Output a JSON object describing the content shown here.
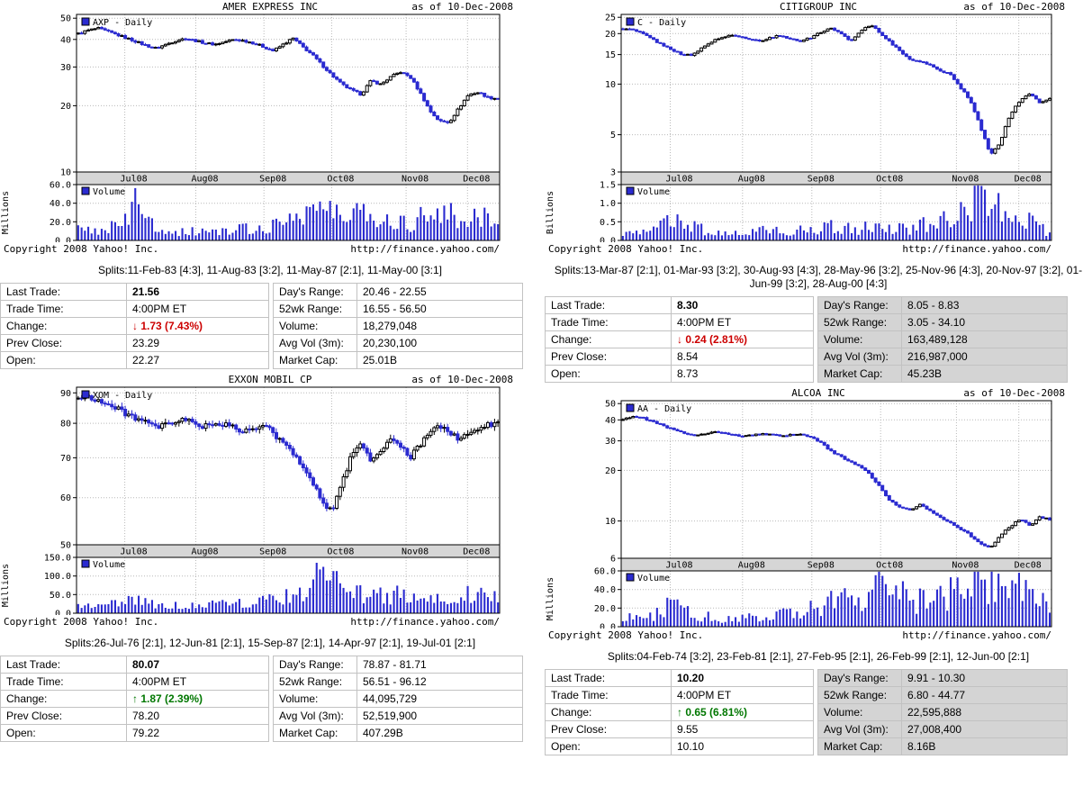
{
  "colors": {
    "candle_blue": "#2b2bd0",
    "band_gray": "#d6d6d6",
    "down_red": "#cc0000",
    "up_green": "#007700",
    "table_highlight": "#d4d4d4"
  },
  "glyphs": {
    "up": "↑",
    "down": "↓"
  },
  "chart_data": [
    {
      "type": "candlestick+volume",
      "title": "AMER EXPRESS INC",
      "as_of": "as of 10-Dec-2008",
      "legend": "AXP - Daily",
      "volume_legend": "Volume",
      "volume_unit": "Millions",
      "copyright": "Copyright 2008 Yahoo! Inc.",
      "url": "http://finance.yahoo.com/",
      "months": [
        "Jul08",
        "Aug08",
        "Sep08",
        "Oct08",
        "Nov08",
        "Dec08"
      ],
      "month_fracs": [
        0.114,
        0.282,
        0.443,
        0.603,
        0.779,
        0.924
      ],
      "price_ticks": [
        50,
        40,
        30,
        20,
        10
      ],
      "price_range": [
        10,
        52
      ],
      "volume_ticks": [
        60,
        40,
        20,
        0
      ],
      "volume_range": [
        0,
        60
      ],
      "x_range": "Jun-2008 to 10-Dec-2008",
      "closes": [
        42.5,
        44,
        45,
        43.5,
        42,
        40.5,
        39,
        37.5,
        36.5,
        38,
        39.5,
        40.5,
        39.5,
        38.5,
        38,
        39,
        40,
        39.5,
        38.5,
        37,
        35.5,
        38,
        40.5,
        37,
        34,
        30.5,
        27.5,
        25,
        23.5,
        22.5,
        26,
        25,
        27,
        28.5,
        27,
        23,
        19,
        17,
        16.8,
        19.5,
        22.5,
        23,
        21.8,
        21.56
      ],
      "volumes": [
        11,
        10,
        12,
        14,
        16,
        20,
        46,
        22,
        15,
        12,
        10,
        9,
        10,
        11,
        10,
        9,
        11,
        13,
        12,
        14,
        17,
        21,
        26,
        31,
        38,
        34,
        30,
        27,
        24,
        41,
        30,
        24,
        20,
        23,
        18,
        26,
        32,
        34,
        28,
        22,
        26,
        30,
        23,
        18
      ]
    },
    {
      "type": "candlestick+volume",
      "title": "CITIGROUP INC",
      "as_of": "as of 10-Dec-2008",
      "legend": "C - Daily",
      "volume_legend": "Volume",
      "volume_unit": "Billions",
      "copyright": "Copyright 2008 Yahoo! Inc.",
      "url": "http://finance.yahoo.com/",
      "months": [
        "Jul08",
        "Aug08",
        "Sep08",
        "Oct08",
        "Nov08",
        "Dec08"
      ],
      "month_fracs": [
        0.114,
        0.282,
        0.443,
        0.603,
        0.779,
        0.924
      ],
      "price_ticks": [
        25,
        20,
        15,
        10,
        5,
        3
      ],
      "price_range": [
        3,
        26
      ],
      "volume_ticks": [
        1.5,
        1.0,
        0.5,
        0.0
      ],
      "volume_range": [
        0,
        1.5
      ],
      "x_range": "Jun-2008 to 10-Dec-2008",
      "closes": [
        21.5,
        21,
        20,
        18.5,
        17,
        16,
        15,
        14.8,
        16.5,
        18,
        19,
        19.5,
        19,
        18.5,
        18,
        19,
        19.5,
        18.5,
        18,
        19,
        20.5,
        21.5,
        20,
        18,
        21,
        22.5,
        20,
        17.5,
        15.5,
        14,
        13.5,
        13,
        12,
        11.5,
        9.5,
        8,
        5.5,
        3.8,
        4.5,
        6.5,
        8,
        8.8,
        7.7,
        8.3
      ],
      "volumes": [
        0.2,
        0.18,
        0.22,
        0.3,
        0.42,
        0.5,
        0.45,
        0.38,
        0.3,
        0.25,
        0.22,
        0.18,
        0.2,
        0.22,
        0.26,
        0.3,
        0.24,
        0.2,
        0.28,
        0.35,
        0.3,
        0.38,
        0.36,
        0.3,
        0.32,
        0.4,
        0.36,
        0.32,
        0.36,
        0.3,
        0.4,
        0.5,
        0.55,
        0.65,
        0.9,
        1.1,
        1.45,
        1.2,
        0.95,
        0.75,
        0.55,
        0.5,
        0.4,
        0.18
      ]
    },
    {
      "type": "candlestick+volume",
      "title": "EXXON MOBIL CP",
      "as_of": "as of 10-Dec-2008",
      "legend": "XOM - Daily",
      "volume_legend": "Volume",
      "volume_unit": "Millions",
      "copyright": "Copyright 2008 Yahoo! Inc.",
      "url": "http://finance.yahoo.com/",
      "months": [
        "Jul08",
        "Aug08",
        "Sep08",
        "Oct08",
        "Nov08",
        "Dec08"
      ],
      "month_fracs": [
        0.114,
        0.282,
        0.443,
        0.603,
        0.779,
        0.924
      ],
      "price_ticks": [
        90,
        80,
        70,
        60,
        50
      ],
      "price_range": [
        50,
        92
      ],
      "volume_ticks": [
        150,
        100,
        50,
        0
      ],
      "volume_range": [
        0,
        150
      ],
      "x_range": "Jun-2008 to 10-Dec-2008",
      "closes": [
        88,
        89,
        87.5,
        86,
        84.5,
        83,
        81.5,
        80,
        78.5,
        79.5,
        80.5,
        81,
        80,
        79,
        80,
        79.5,
        78.5,
        77.5,
        78,
        79.5,
        77,
        74,
        71,
        68,
        64,
        59,
        57,
        63,
        71,
        74.5,
        69,
        72,
        75,
        73,
        70,
        73.5,
        77,
        79.5,
        77.5,
        75,
        76.5,
        78.5,
        79.5,
        80.07
      ],
      "volumes": [
        26,
        22,
        24,
        27,
        32,
        30,
        36,
        32,
        26,
        23,
        21,
        19,
        21,
        23,
        26,
        31,
        29,
        26,
        31,
        36,
        42,
        46,
        52,
        62,
        85,
        105,
        92,
        72,
        62,
        57,
        52,
        47,
        52,
        57,
        60,
        52,
        47,
        42,
        47,
        52,
        57,
        60,
        50,
        44
      ]
    },
    {
      "type": "candlestick+volume",
      "title": "ALCOA INC",
      "as_of": "as of 10-Dec-2008",
      "legend": "AA - Daily",
      "volume_legend": "Volume",
      "volume_unit": "Millions",
      "copyright": "Copyright 2008 Yahoo! Inc.",
      "url": "http://finance.yahoo.com/",
      "months": [
        "Jul08",
        "Aug08",
        "Sep08",
        "Oct08",
        "Nov08",
        "Dec08"
      ],
      "month_fracs": [
        0.114,
        0.282,
        0.443,
        0.603,
        0.779,
        0.924
      ],
      "price_ticks": [
        50,
        40,
        30,
        20,
        10,
        6
      ],
      "price_range": [
        6,
        52
      ],
      "volume_ticks": [
        60,
        40,
        20,
        0
      ],
      "volume_range": [
        0,
        60
      ],
      "x_range": "Jun-2008 to 10-Dec-2008",
      "closes": [
        40.5,
        42,
        41,
        39,
        37,
        35,
        33.5,
        32.5,
        33,
        34,
        33.5,
        32.5,
        32,
        32.5,
        33,
        32.5,
        32,
        32.5,
        33,
        31.5,
        29,
        26,
        24,
        22.5,
        21,
        18.5,
        15.5,
        13,
        12,
        11.5,
        12.5,
        11.5,
        10.5,
        9.8,
        9,
        8.2,
        7.3,
        6.9,
        8.2,
        9.3,
        10.2,
        9.4,
        10.6,
        10.2
      ],
      "volumes": [
        9,
        10,
        11,
        13,
        16,
        31,
        21,
        15,
        12,
        10,
        9,
        10,
        12,
        11,
        10,
        12,
        14,
        16,
        18,
        21,
        23,
        26,
        29,
        31,
        36,
        41,
        50,
        44,
        36,
        30,
        28,
        26,
        31,
        36,
        40,
        45,
        56,
        48,
        40,
        52,
        44,
        36,
        30,
        24
      ]
    }
  ],
  "panels": [
    {
      "splits": "Splits:11-Feb-83 [4:3], 11-Aug-83 [3:2], 11-May-87 [2:1], 11-May-00 [3:1]",
      "quote": {
        "highlight_right": false,
        "left": [
          {
            "label": "Last Trade:",
            "value": "21.56",
            "big": true
          },
          {
            "label": "Trade Time:",
            "value": "4:00PM ET"
          },
          {
            "label": "Change:",
            "value": "1.73 (7.43%)",
            "arrow": "down"
          },
          {
            "label": "Prev Close:",
            "value": "23.29"
          },
          {
            "label": "Open:",
            "value": "22.27"
          }
        ],
        "right": [
          {
            "label": "Day's Range:",
            "value": "20.46 - 22.55"
          },
          {
            "label": "52wk Range:",
            "value": "16.55 - 56.50"
          },
          {
            "label": "Volume:",
            "value": "18,279,048"
          },
          {
            "label": "Avg Vol (3m):",
            "value": "20,230,100"
          },
          {
            "label": "Market Cap:",
            "value": "25.01B"
          }
        ]
      }
    },
    {
      "splits": "Splits:13-Mar-87 [2:1], 01-Mar-93 [3:2], 30-Aug-93 [4:3], 28-May-96 [3:2], 25-Nov-96 [4:3], 20-Nov-97 [3:2], 01-Jun-99 [3:2], 28-Aug-00 [4:3]",
      "quote": {
        "highlight_right": true,
        "left": [
          {
            "label": "Last Trade:",
            "value": "8.30",
            "big": true
          },
          {
            "label": "Trade Time:",
            "value": "4:00PM ET"
          },
          {
            "label": "Change:",
            "value": "0.24 (2.81%)",
            "arrow": "down"
          },
          {
            "label": "Prev Close:",
            "value": "8.54"
          },
          {
            "label": "Open:",
            "value": "8.73"
          }
        ],
        "right": [
          {
            "label": "Day's Range:",
            "value": "8.05 - 8.83"
          },
          {
            "label": "52wk Range:",
            "value": "3.05 - 34.10"
          },
          {
            "label": "Volume:",
            "value": "163,489,128"
          },
          {
            "label": "Avg Vol (3m):",
            "value": "216,987,000"
          },
          {
            "label": "Market Cap:",
            "value": "45.23B"
          }
        ]
      }
    },
    {
      "splits": "Splits:26-Jul-76 [2:1], 12-Jun-81 [2:1], 15-Sep-87 [2:1], 14-Apr-97 [2:1], 19-Jul-01 [2:1]",
      "quote": {
        "highlight_right": false,
        "left": [
          {
            "label": "Last Trade:",
            "value": "80.07",
            "big": true
          },
          {
            "label": "Trade Time:",
            "value": "4:00PM ET"
          },
          {
            "label": "Change:",
            "value": "1.87 (2.39%)",
            "arrow": "up"
          },
          {
            "label": "Prev Close:",
            "value": "78.20"
          },
          {
            "label": "Open:",
            "value": "79.22"
          }
        ],
        "right": [
          {
            "label": "Day's Range:",
            "value": "78.87 - 81.71"
          },
          {
            "label": "52wk Range:",
            "value": "56.51 - 96.12"
          },
          {
            "label": "Volume:",
            "value": "44,095,729"
          },
          {
            "label": "Avg Vol (3m):",
            "value": "52,519,900"
          },
          {
            "label": "Market Cap:",
            "value": "407.29B"
          }
        ]
      }
    },
    {
      "splits": "Splits:04-Feb-74 [3:2], 23-Feb-81 [2:1], 27-Feb-95 [2:1], 26-Feb-99 [2:1], 12-Jun-00 [2:1]",
      "quote": {
        "highlight_right": true,
        "left": [
          {
            "label": "Last Trade:",
            "value": "10.20",
            "big": true
          },
          {
            "label": "Trade Time:",
            "value": "4:00PM ET"
          },
          {
            "label": "Change:",
            "value": "0.65 (6.81%)",
            "arrow": "up"
          },
          {
            "label": "Prev Close:",
            "value": "9.55"
          },
          {
            "label": "Open:",
            "value": "10.10"
          }
        ],
        "right": [
          {
            "label": "Day's Range:",
            "value": "9.91 - 10.30"
          },
          {
            "label": "52wk Range:",
            "value": "6.80 - 44.77"
          },
          {
            "label": "Volume:",
            "value": "22,595,888"
          },
          {
            "label": "Avg Vol (3m):",
            "value": "27,008,400"
          },
          {
            "label": "Market Cap:",
            "value": "8.16B"
          }
        ]
      }
    }
  ]
}
